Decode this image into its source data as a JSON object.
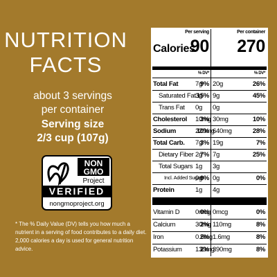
{
  "header": {
    "title_line1": "NUTRITION",
    "title_line2": "FACTS",
    "servings_line1": "about 3 servings",
    "servings_line2": "per container",
    "serving_size_label": "Serving size",
    "serving_size": "2/3 cup (107g)"
  },
  "badge": {
    "line1": "NON",
    "line2": "GMO",
    "line3": "Project",
    "verified": "VERIFIED",
    "url": "nongmoproject.org"
  },
  "footnote": "* The % Daily Value (DV) tells you how much a nutrient in a serving of food contributes to a daily diet. 2,000 calories a day is used for general nutrition advice.",
  "label": {
    "per_serving": "Per serving",
    "per_container": "Per container",
    "calories_label": "Calories",
    "calories_serving": "90",
    "calories_container": "270",
    "dv_heading_serving": "% DV*",
    "dv_heading_container": "% DV*",
    "nutrients": [
      {
        "name": "Total Fat",
        "bold": true,
        "indent": 0,
        "serving": "7g",
        "serving_dv": "9%",
        "container": "20g",
        "container_dv": "26%"
      },
      {
        "name": "Saturated Fat",
        "bold": false,
        "indent": 1,
        "serving": "3g",
        "serving_dv": "15%",
        "container": "9g",
        "container_dv": "45%"
      },
      {
        "name": "Trans Fat",
        "bold": false,
        "indent": 1,
        "serving": "0g",
        "container": "0g"
      },
      {
        "name": "Cholesterol",
        "bold": true,
        "indent": 0,
        "serving": "10mg",
        "serving_dv": "3%",
        "container": "30mg",
        "container_dv": "10%"
      },
      {
        "name": "Sodium",
        "bold": true,
        "indent": 0,
        "serving": "220mg",
        "serving_dv": "10%",
        "container": "640mg",
        "container_dv": "28%"
      },
      {
        "name": "Total Carb.",
        "bold": true,
        "indent": 0,
        "serving": "7g",
        "serving_dv": "3%",
        "container": "19g",
        "container_dv": "7%"
      },
      {
        "name": "Dietary Fiber",
        "bold": false,
        "indent": 1,
        "serving": "2g",
        "serving_dv": "7%",
        "container": "7g",
        "container_dv": "25%"
      },
      {
        "name": "Total Sugars",
        "bold": false,
        "indent": 1,
        "serving": "1g",
        "container": "3g"
      },
      {
        "name": "Incl. Added Sugars",
        "bold": false,
        "indent": 2,
        "serving": "0g",
        "serving_dv": "0%",
        "container": "0g",
        "container_dv": "0%"
      },
      {
        "name": "Protein",
        "bold": true,
        "indent": 0,
        "serving": "1g",
        "container": "4g"
      }
    ],
    "vitamins": [
      {
        "name": "Vitamin D",
        "serving": "0mcg",
        "serving_dv": "0%",
        "container": "0mcg",
        "container_dv": "0%"
      },
      {
        "name": "Calcium",
        "serving": "30mg",
        "serving_dv": "2%",
        "container": "110mg",
        "container_dv": "8%"
      },
      {
        "name": "Iron",
        "serving": "0.5mg",
        "serving_dv": "2%",
        "container": "1.6mg",
        "container_dv": "8%"
      },
      {
        "name": "Potassium",
        "serving": "130mg",
        "serving_dv": "2%",
        "container": "390mg",
        "container_dv": "8%"
      }
    ]
  }
}
